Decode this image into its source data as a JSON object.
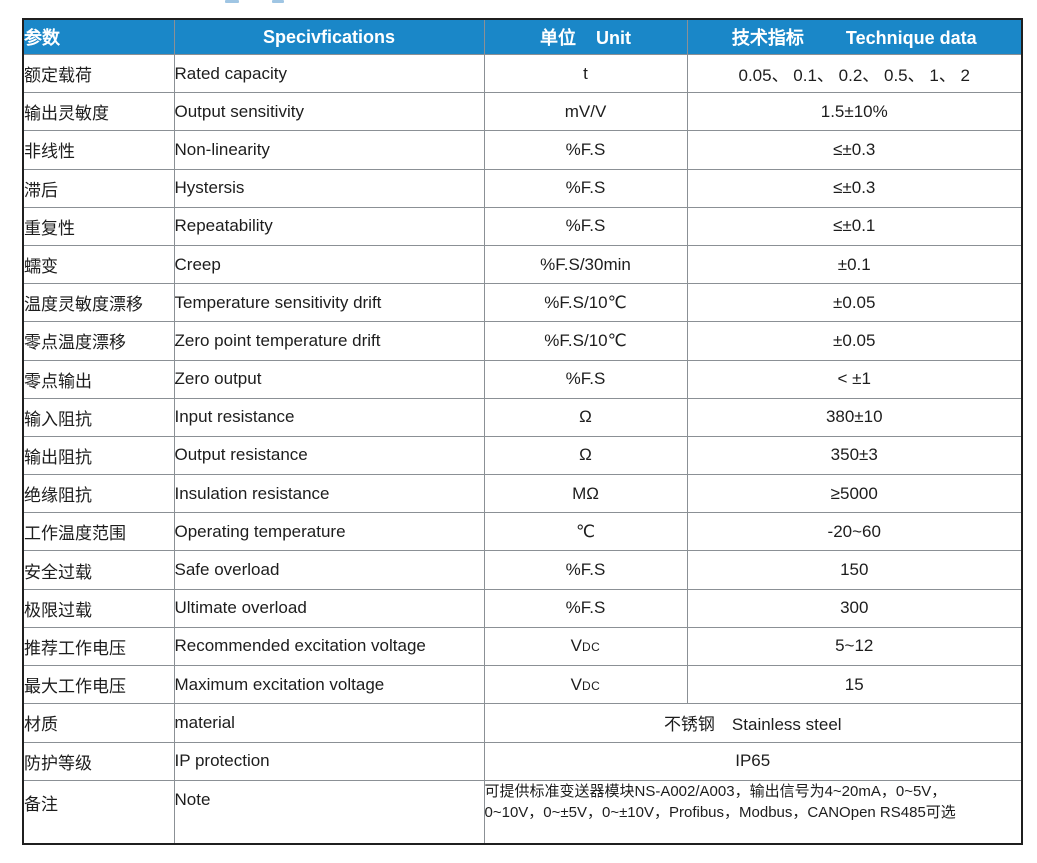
{
  "page": {
    "background": "#ffffff"
  },
  "colors": {
    "header_bg": "#1a87c8",
    "header_text": "#ffffff",
    "body_text": "#1d1d1d",
    "grid_line": "#8b9095",
    "outer_border": "#1f1f1f"
  },
  "table": {
    "headers": {
      "param_cn": "参数",
      "spec_en": "Specivfications",
      "unit_cn": "单位",
      "unit_en": "Unit",
      "data_cn": "技术指标",
      "data_en": "Technique data"
    },
    "rows": [
      {
        "cn": "额定载荷",
        "en": "Rated capacity",
        "unit": "t",
        "value": "0.05、 0.1、 0.2、 0.5、 1、 2"
      },
      {
        "cn": "输出灵敏度",
        "en": "Output sensitivity",
        "unit": "mV/V",
        "value": "1.5±10%"
      },
      {
        "cn": "非线性",
        "en": "Non-linearity",
        "unit": "%F.S",
        "value": "≤±0.3"
      },
      {
        "cn": "滞后",
        "en": "Hystersis",
        "unit": "%F.S",
        "value": "≤±0.3"
      },
      {
        "cn": "重复性",
        "en": "Repeatability",
        "unit": "%F.S",
        "value": "≤±0.1"
      },
      {
        "cn": "蠕变",
        "en": "Creep",
        "unit": "%F.S/30min",
        "value": "±0.1"
      },
      {
        "cn": "温度灵敏度漂移",
        "en": "Temperature sensitivity drift",
        "unit": "%F.S/10℃",
        "value": "±0.05"
      },
      {
        "cn": "零点温度漂移",
        "en": "Zero point temperature drift",
        "unit": "%F.S/10℃",
        "value": "±0.05"
      },
      {
        "cn": "零点输出",
        "en": "Zero output",
        "unit": "%F.S",
        "value": "< ±1"
      },
      {
        "cn": "输入阻抗",
        "en": "Input resistance",
        "unit": "Ω",
        "value": "380±10"
      },
      {
        "cn": "输出阻抗",
        "en": "Output resistance",
        "unit": "Ω",
        "value": "350±3"
      },
      {
        "cn": "绝缘阻抗",
        "en": "Insulation resistance",
        "unit": "MΩ",
        "value": "≥5000"
      },
      {
        "cn": "工作温度范围",
        "en": "Operating temperature",
        "unit": "℃",
        "value": "-20~60"
      },
      {
        "cn": "安全过载",
        "en": "Safe overload",
        "unit": "%F.S",
        "value": "150"
      },
      {
        "cn": "极限过载",
        "en": "Ultimate overload",
        "unit": "%F.S",
        "value": "300"
      },
      {
        "cn": "推荐工作电压",
        "en": "Recommended excitation voltage",
        "unit": "V",
        "unit_sub": "DC",
        "value": "5~12"
      },
      {
        "cn": "最大工作电压",
        "en": "Maximum excitation voltage",
        "unit": "V",
        "unit_sub": "DC",
        "value": "15"
      }
    ],
    "merged_rows": [
      {
        "cn": "材质",
        "en": "material",
        "value": "不锈钢　Stainless steel"
      },
      {
        "cn": "防护等级",
        "en": "IP protection",
        "value": "IP65"
      }
    ],
    "note_row": {
      "cn": "备注",
      "en": "Note",
      "lines": [
        "可提供标准变送器模块NS-A002/A003，输出信号为4~20mA，0~5V，",
        "0~10V，0~±5V，0~±10V，Profibus，Modbus，CANOpen RS485可选"
      ]
    }
  }
}
